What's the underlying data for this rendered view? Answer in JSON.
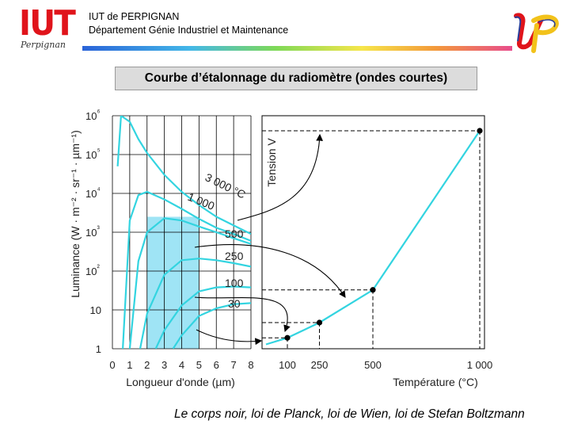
{
  "header": {
    "institution": "IUT de PERPIGNAN",
    "department": "Département Génie Industriel et Maintenance",
    "logo_iut_text": "IUT",
    "logo_iut_script": "Perpignan",
    "logo_up": "UP"
  },
  "slide": {
    "title": "Courbe d’étalonnage du radiomètre (ondes courtes)",
    "caption": "Le corps noir, loi de Planck, loi de Wien, loi de Stefan Boltzmann"
  },
  "colors": {
    "curve": "#33d4e0",
    "band_fill": "#9fe4f5",
    "rainbow": [
      "#2a63d8",
      "#43b7e8",
      "#7ed957",
      "#f6e64a",
      "#f39a3a",
      "#e84c8c"
    ],
    "iut_red": "#e0141b"
  },
  "chart_data": [
    {
      "type": "line",
      "title": "",
      "xlabel": "Longueur d'onde (µm)",
      "ylabel": "Luminance (W · m⁻² · sr⁻¹ · µm⁻¹)",
      "x_ticks": [
        "0",
        "1",
        "2",
        "3",
        "4",
        "5",
        "6",
        "7",
        "8"
      ],
      "y_ticks": [
        "1",
        "10",
        "10²",
        "10³",
        "10⁴",
        "10⁵",
        "10⁶"
      ],
      "xlim": [
        0,
        8
      ],
      "ylog": true,
      "ylim": [
        1,
        1000000
      ],
      "grid": true,
      "highlighted_band_um": [
        2,
        5
      ],
      "series": [
        {
          "name": "30",
          "x": [
            3.5,
            4,
            5,
            6,
            7,
            8
          ],
          "values": [
            1,
            2.2,
            7,
            11,
            14,
            15
          ]
        },
        {
          "name": "100",
          "x": [
            2.5,
            3,
            4,
            5,
            6,
            7,
            8
          ],
          "values": [
            1,
            3,
            13,
            30,
            38,
            40,
            38
          ]
        },
        {
          "name": "250",
          "x": [
            1.6,
            2,
            3,
            4,
            5,
            6,
            7,
            8
          ],
          "values": [
            1,
            8,
            80,
            190,
            210,
            190,
            160,
            130
          ]
        },
        {
          "name": "500",
          "x": [
            1.0,
            1.5,
            2,
            3,
            4,
            5,
            6,
            7,
            8
          ],
          "values": [
            1,
            180,
            1000,
            2300,
            2000,
            1400,
            1000,
            700,
            500
          ]
        },
        {
          "name": "1 000",
          "x": [
            0.6,
            1,
            1.5,
            2,
            3,
            4,
            5,
            6,
            7,
            8
          ],
          "values": [
            1,
            2000,
            9000,
            11000,
            7000,
            4000,
            2200,
            1300,
            900,
            600
          ]
        },
        {
          "name": "3 000 °C",
          "x": [
            0.3,
            0.5,
            1,
            1.5,
            2,
            3,
            4,
            5,
            6,
            7,
            8
          ],
          "values": [
            50000,
            1000000,
            700000,
            250000,
            110000,
            30000,
            11000,
            5000,
            2500,
            1500,
            900
          ]
        }
      ],
      "curve_labels": [
        "3 000 °C",
        "1 000",
        "500",
        "250",
        "100",
        "30"
      ]
    },
    {
      "type": "line",
      "title": "",
      "xlabel": "Température (°C)",
      "ylabel": "Tension V",
      "x_ticks": [
        "100",
        "250",
        "500",
        "1 000"
      ],
      "xlim": [
        0,
        1000
      ],
      "series": [
        {
          "name": "",
          "x": [
            0,
            100,
            250,
            500,
            1000
          ],
          "values": [
            0.02,
            0.05,
            0.12,
            0.27,
            1.0
          ]
        }
      ],
      "points": [
        {
          "x": 100,
          "y": 0.05
        },
        {
          "x": 250,
          "y": 0.12
        },
        {
          "x": 500,
          "y": 0.27
        },
        {
          "x": 1000,
          "y": 1.0
        }
      ]
    }
  ]
}
